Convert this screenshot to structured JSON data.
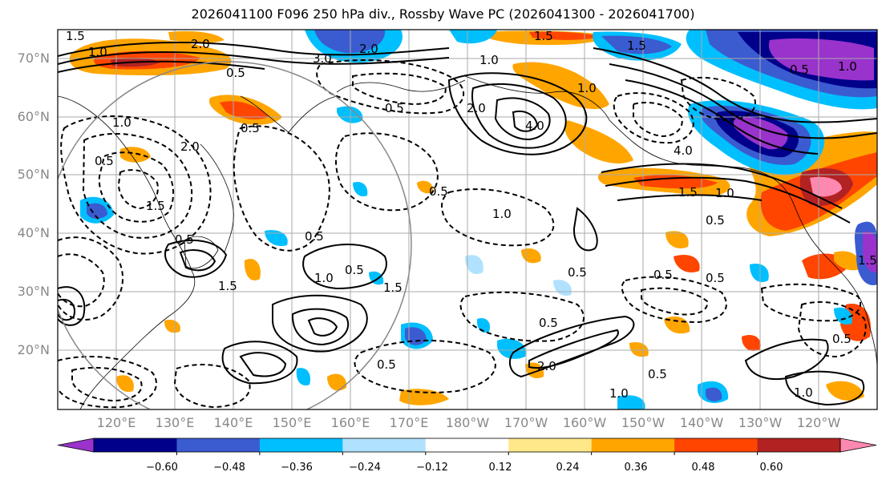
{
  "title": "2026041100 F096 250 hPa div., Rossby Wave PC (2026041300 - 2026041700)",
  "lat_labels": [
    "70°N",
    "60°N",
    "50°N",
    "40°N",
    "30°N",
    "20°N"
  ],
  "lon_labels": [
    "120°E",
    "130°E",
    "140°E",
    "150°E",
    "160°E",
    "170°E",
    "180°W",
    "170°W",
    "160°W",
    "150°W",
    "140°W",
    "130°W",
    "120°W"
  ],
  "contour_labels": [
    "1.5",
    "1.0",
    "0.5",
    "2.0",
    "0.5",
    "1.0",
    "3.0",
    "2.0",
    "1.5",
    "1.0",
    "1.5",
    "4.0",
    "2.0",
    "1.0",
    "0.5",
    "0.5",
    "1.0",
    "2.0",
    "0.5",
    "1.5",
    "0.5",
    "1.0",
    "0.5",
    "1.5",
    "1.0",
    "0.5",
    "0.5",
    "1.5",
    "0.5",
    "0.5",
    "1.0",
    "2.0",
    "0.5",
    "0.5",
    "0.5",
    "1.5",
    "0.5",
    "1.0",
    "0.5",
    "4.0",
    "1.5",
    "1.0",
    "0.5"
  ],
  "colorbar": {
    "tick_labels": [
      "−0.60",
      "−0.48",
      "−0.36",
      "−0.24",
      "−0.12",
      "0.12",
      "0.24",
      "0.36",
      "0.48",
      "0.60"
    ],
    "colors": [
      "#9933cc",
      "#00008b",
      "#3b5bd1",
      "#00bfff",
      "#b0e2ff",
      "#ffffff",
      "#ffe88a",
      "#ffa500",
      "#ff4500",
      "#b22222",
      "#ff88b0"
    ]
  },
  "colors": {
    "grid": "#aaaaaa",
    "coast": "#000000",
    "axis_label": "#888888",
    "circle": "#888888"
  }
}
